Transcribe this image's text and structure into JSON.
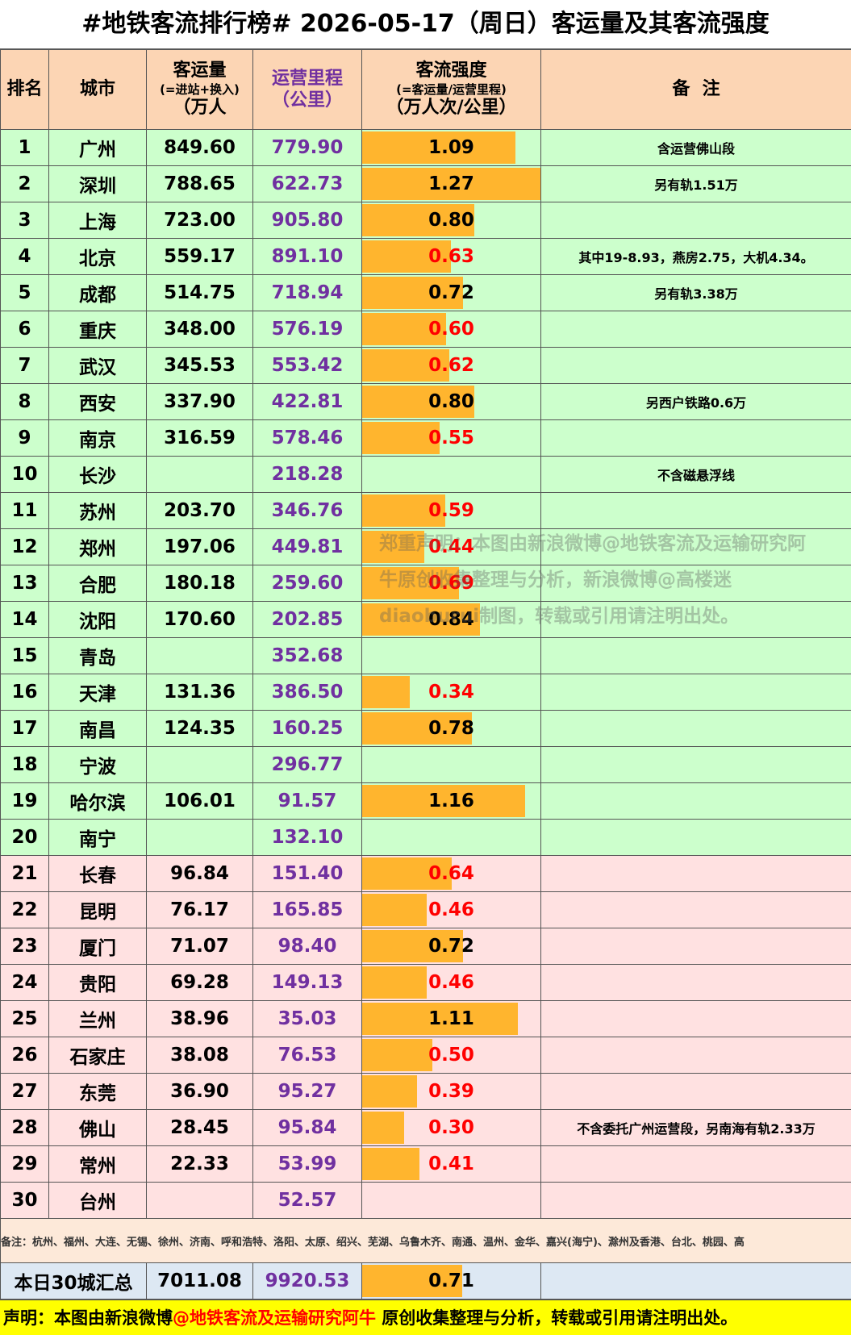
{
  "title": "#地铁客流排行榜# 2026-05-17（周日）客运量及其客流强度",
  "header": {
    "rank": "排名",
    "city": "城市",
    "ridership": [
      "客运量",
      "(=进站+换入)",
      "（万人"
    ],
    "length": [
      "运营里程",
      "（公里）"
    ],
    "intensity": [
      "客流强度",
      "(=客运量/运营里程)",
      "（万人次/公里）"
    ],
    "note": "备  注"
  },
  "bar_color": "#ffb52e",
  "rows": [
    {
      "rank": "1",
      "city": "广州",
      "ridership": "849.60",
      "length": "779.90",
      "intensity": 1.09,
      "intensity_label": "1.09",
      "text_color": "#000000",
      "bg": "#ccffcc",
      "note": "含运营佛山段"
    },
    {
      "rank": "2",
      "city": "深圳",
      "ridership": "788.65",
      "length": "622.73",
      "intensity": 1.27,
      "intensity_label": "1.27",
      "text_color": "#000000",
      "bg": "#ccffcc",
      "note": "另有轨1.51万"
    },
    {
      "rank": "3",
      "city": "上海",
      "ridership": "723.00",
      "length": "905.80",
      "intensity": 0.8,
      "intensity_label": "0.80",
      "text_color": "#000000",
      "bg": "#ccffcc",
      "note": null
    },
    {
      "rank": "4",
      "city": "北京",
      "ridership": "559.17",
      "length": "891.10",
      "intensity": 0.63,
      "intensity_label": "0.63",
      "text_color": "#ff0000",
      "bg": "#ccffcc",
      "note": "其中19-8.93，燕房2.75，大机4.34。"
    },
    {
      "rank": "5",
      "city": "成都",
      "ridership": "514.75",
      "length": "718.94",
      "intensity": 0.72,
      "intensity_label": "0.72",
      "text_color": "#000000",
      "bg": "#ccffcc",
      "note": "另有轨3.38万"
    },
    {
      "rank": "6",
      "city": "重庆",
      "ridership": "348.00",
      "length": "576.19",
      "intensity": 0.6,
      "intensity_label": "0.60",
      "text_color": "#ff0000",
      "bg": "#ccffcc",
      "note": null
    },
    {
      "rank": "7",
      "city": "武汉",
      "ridership": "345.53",
      "length": "553.42",
      "intensity": 0.62,
      "intensity_label": "0.62",
      "text_color": "#ff0000",
      "bg": "#ccffcc",
      "note": null
    },
    {
      "rank": "8",
      "city": "西安",
      "ridership": "337.90",
      "length": "422.81",
      "intensity": 0.8,
      "intensity_label": "0.80",
      "text_color": "#000000",
      "bg": "#ccffcc",
      "note": "另西户铁路0.6万"
    },
    {
      "rank": "9",
      "city": "南京",
      "ridership": "316.59",
      "length": "578.46",
      "intensity": 0.55,
      "intensity_label": "0.55",
      "text_color": "#ff0000",
      "bg": "#ccffcc",
      "note": null
    },
    {
      "rank": "10",
      "city": "长沙",
      "ridership": null,
      "length": "218.28",
      "intensity": null,
      "intensity_label": null,
      "text_color": "#000000",
      "bg": "#ccffcc",
      "note": "不含磁悬浮线"
    },
    {
      "rank": "11",
      "city": "苏州",
      "ridership": "203.70",
      "length": "346.76",
      "intensity": 0.59,
      "intensity_label": "0.59",
      "text_color": "#ff0000",
      "bg": "#ccffcc",
      "note": null
    },
    {
      "rank": "12",
      "city": "郑州",
      "ridership": "197.06",
      "length": "449.81",
      "intensity": 0.44,
      "intensity_label": "0.44",
      "text_color": "#ff0000",
      "bg": "#ccffcc",
      "note": null
    },
    {
      "rank": "13",
      "city": "合肥",
      "ridership": "180.18",
      "length": "259.60",
      "intensity": 0.69,
      "intensity_label": "0.69",
      "text_color": "#ff0000",
      "bg": "#ccffcc",
      "note": null
    },
    {
      "rank": "14",
      "city": "沈阳",
      "ridership": "170.60",
      "length": "202.85",
      "intensity": 0.84,
      "intensity_label": "0.84",
      "text_color": "#000000",
      "bg": "#ccffcc",
      "note": null
    },
    {
      "rank": "15",
      "city": "青岛",
      "ridership": null,
      "length": "352.68",
      "intensity": null,
      "intensity_label": null,
      "text_color": "#000000",
      "bg": "#ccffcc",
      "note": null
    },
    {
      "rank": "16",
      "city": "天津",
      "ridership": "131.36",
      "length": "386.50",
      "intensity": 0.34,
      "intensity_label": "0.34",
      "text_color": "#ff0000",
      "bg": "#ccffcc",
      "note": null
    },
    {
      "rank": "17",
      "city": "南昌",
      "ridership": "124.35",
      "length": "160.25",
      "intensity": 0.78,
      "intensity_label": "0.78",
      "text_color": "#000000",
      "bg": "#ccffcc",
      "note": null
    },
    {
      "rank": "18",
      "city": "宁波",
      "ridership": null,
      "length": "296.77",
      "intensity": null,
      "intensity_label": null,
      "text_color": "#000000",
      "bg": "#ccffcc",
      "note": null
    },
    {
      "rank": "19",
      "city": "哈尔滨",
      "ridership": "106.01",
      "length": "91.57",
      "intensity": 1.16,
      "intensity_label": "1.16",
      "text_color": "#000000",
      "bg": "#ccffcc",
      "note": null
    },
    {
      "rank": "20",
      "city": "南宁",
      "ridership": null,
      "length": "132.10",
      "intensity": null,
      "intensity_label": null,
      "text_color": "#000000",
      "bg": "#ccffcc",
      "note": null
    },
    {
      "rank": "21",
      "city": "长春",
      "ridership": "96.84",
      "length": "151.40",
      "intensity": 0.64,
      "intensity_label": "0.64",
      "text_color": "#ff0000",
      "bg": "#ffe1e1",
      "note": null
    },
    {
      "rank": "22",
      "city": "昆明",
      "ridership": "76.17",
      "length": "165.85",
      "intensity": 0.46,
      "intensity_label": "0.46",
      "text_color": "#ff0000",
      "bg": "#ffe1e1",
      "note": null
    },
    {
      "rank": "23",
      "city": "厦门",
      "ridership": "71.07",
      "length": "98.40",
      "intensity": 0.72,
      "intensity_label": "0.72",
      "text_color": "#000000",
      "bg": "#ffe1e1",
      "note": null
    },
    {
      "rank": "24",
      "city": "贵阳",
      "ridership": "69.28",
      "length": "149.13",
      "intensity": 0.46,
      "intensity_label": "0.46",
      "text_color": "#ff0000",
      "bg": "#ffe1e1",
      "note": null
    },
    {
      "rank": "25",
      "city": "兰州",
      "ridership": "38.96",
      "length": "35.03",
      "intensity": 1.11,
      "intensity_label": "1.11",
      "text_color": "#000000",
      "bg": "#ffe1e1",
      "note": null
    },
    {
      "rank": "26",
      "city": "石家庄",
      "ridership": "38.08",
      "length": "76.53",
      "intensity": 0.5,
      "intensity_label": "0.50",
      "text_color": "#ff0000",
      "bg": "#ffe1e1",
      "note": null
    },
    {
      "rank": "27",
      "city": "东莞",
      "ridership": "36.90",
      "length": "95.27",
      "intensity": 0.39,
      "intensity_label": "0.39",
      "text_color": "#ff0000",
      "bg": "#ffe1e1",
      "note": null
    },
    {
      "rank": "28",
      "city": "佛山",
      "ridership": "28.45",
      "length": "95.84",
      "intensity": 0.3,
      "intensity_label": "0.30",
      "text_color": "#ff0000",
      "bg": "#ffe1e1",
      "note": "不含委托广州运营段，另南海有轨2.33万"
    },
    {
      "rank": "29",
      "city": "常州",
      "ridership": "22.33",
      "length": "53.99",
      "intensity": 0.41,
      "intensity_label": "0.41",
      "text_color": "#ff0000",
      "bg": "#ffe1e1",
      "note": null
    },
    {
      "rank": "30",
      "city": "台州",
      "ridership": null,
      "length": "52.57",
      "intensity": null,
      "intensity_label": null,
      "text_color": "#000000",
      "bg": "#ffe1e1",
      "note": null
    }
  ],
  "remark": "备注：杭州、福州、大连、无锡、徐州、济南、呼和浩特、洛阳、太原、绍兴、芜湖、乌鲁木齐、南通、温州、金华、嘉兴(海宁)、滁州及香港、台北、桃园、高",
  "total": {
    "label": "本日30城汇总",
    "ridership": "7011.08",
    "length": "9920.53",
    "intensity": 0.71,
    "intensity_label": "0.71"
  },
  "watermark": "郑重声明：本图由新浪微博@地铁客流及运输研究阿牛原创收集整理与分析，新浪微博@高楼迷diaoburui制图，转载或引用请注明出处。",
  "footer": {
    "prefix": "声明：本图由新浪微博",
    "account": "@地铁客流及运输研究阿牛",
    "suffix": " 原创收集整理与分析，转载或引用请注明出处。"
  }
}
